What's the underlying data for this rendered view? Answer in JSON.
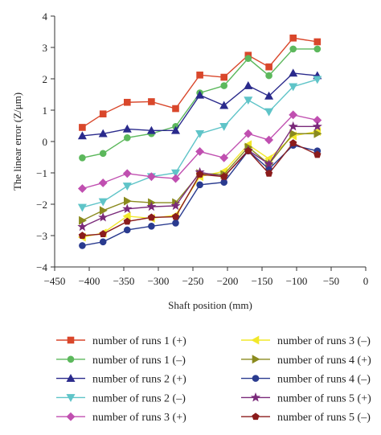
{
  "chart_data": {
    "type": "line",
    "title": "",
    "xlabel": "Shaft position (mm)",
    "ylabel": "The linear error (Z/μm)",
    "xlim": [
      -450,
      0
    ],
    "ylim": [
      -4,
      4
    ],
    "xticks": [
      -450,
      -400,
      -350,
      -300,
      -250,
      -200,
      -150,
      -100,
      -50,
      0
    ],
    "yticks": [
      -4,
      -3,
      -2,
      -1,
      0,
      1,
      2,
      3,
      4
    ],
    "xtick_labels": [
      "−450",
      "−400",
      "−350",
      "−300",
      "−250",
      "−200",
      "−150",
      "−100",
      "−50",
      "0"
    ],
    "ytick_labels": [
      "−4",
      "−3",
      "−2",
      "−1",
      "0",
      "1",
      "2",
      "3",
      "4"
    ],
    "grid": false,
    "legend_position": "bottom",
    "x": [
      -410,
      -380,
      -345,
      -310,
      -275,
      -240,
      -205,
      -170,
      -140,
      -105,
      -70
    ],
    "series": [
      {
        "name": "number of runs 1 (+)",
        "color": "#d9472b",
        "marker": "square",
        "values": [
          0.45,
          0.88,
          1.25,
          1.27,
          1.05,
          2.12,
          2.05,
          2.75,
          2.38,
          3.3,
          3.18
        ]
      },
      {
        "name": "number of runs 1 (–)",
        "color": "#5cb85c",
        "marker": "circle",
        "values": [
          -0.52,
          -0.38,
          0.12,
          0.25,
          0.48,
          1.55,
          1.78,
          2.65,
          2.1,
          2.95,
          2.95
        ]
      },
      {
        "name": "number of runs 2 (+)",
        "color": "#2a2a8c",
        "marker": "triangle-up",
        "values": [
          0.18,
          0.25,
          0.4,
          0.35,
          0.35,
          1.48,
          1.15,
          1.78,
          1.45,
          2.18,
          2.1
        ]
      },
      {
        "name": "number of runs 2 (–)",
        "color": "#5fc4c8",
        "marker": "triangle-down",
        "values": [
          -2.1,
          -1.92,
          -1.42,
          -1.12,
          -1.0,
          0.25,
          0.48,
          1.32,
          0.95,
          1.75,
          1.98
        ]
      },
      {
        "name": "number of runs 3 (+)",
        "color": "#c04fb0",
        "marker": "diamond",
        "values": [
          -1.5,
          -1.32,
          -1.02,
          -1.12,
          -1.18,
          -0.32,
          -0.52,
          0.25,
          0.05,
          0.85,
          0.68
        ]
      },
      {
        "name": "number of runs 3 (–)",
        "color": "#f2e82a",
        "marker": "triangle-left",
        "values": [
          -3.05,
          -2.92,
          -2.38,
          -2.45,
          -2.35,
          -1.12,
          -0.95,
          -0.1,
          -0.55,
          0.18,
          0.32
        ]
      },
      {
        "name": "number of runs 4 (+)",
        "color": "#8a8a1e",
        "marker": "triangle-right",
        "values": [
          -2.52,
          -2.2,
          -1.9,
          -1.95,
          -1.95,
          -1.02,
          -1.05,
          -0.18,
          -0.72,
          0.25,
          0.25
        ]
      },
      {
        "name": "number of runs 4 (–)",
        "color": "#2a3b8f",
        "marker": "circle",
        "values": [
          -3.32,
          -3.2,
          -2.82,
          -2.7,
          -2.6,
          -1.38,
          -1.3,
          -0.3,
          -0.88,
          -0.12,
          -0.3
        ]
      },
      {
        "name": "number of runs 5 (+)",
        "color": "#7a2a7a",
        "marker": "star",
        "values": [
          -2.72,
          -2.42,
          -2.15,
          -2.08,
          -2.05,
          -0.98,
          -1.12,
          -0.28,
          -0.72,
          0.48,
          0.48
        ]
      },
      {
        "name": "number of runs 5 (–)",
        "color": "#8b1c1c",
        "marker": "pentagon",
        "values": [
          -3.0,
          -2.95,
          -2.55,
          -2.42,
          -2.4,
          -1.05,
          -1.12,
          -0.3,
          -1.02,
          -0.05,
          -0.42
        ]
      }
    ]
  }
}
